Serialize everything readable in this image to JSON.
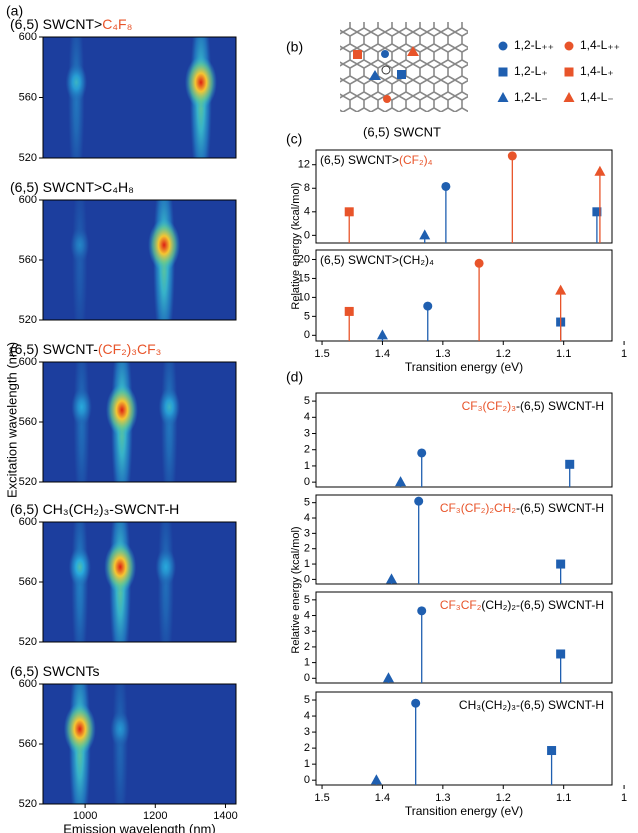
{
  "labels": {
    "a": "(a)",
    "b": "(b)",
    "c": "(c)",
    "d": "(d)",
    "structure": "(6,5) SWCNT",
    "excitation": "Excitation wavelength (nm)",
    "relative_c": "Relative energy (kcal/mol)",
    "relative_d": "Relative energy (kcal/mol)"
  },
  "chart_data": [
    {
      "type": "heatmap",
      "title": [
        {
          "text": "(6,5) SWCNT>",
          "color": "#000000"
        },
        {
          "text": "C₄F₈",
          "color": "#e8542a"
        }
      ],
      "xlim": [
        880,
        1430
      ],
      "ylim": [
        520,
        600
      ],
      "yticks": [
        520,
        560,
        600
      ],
      "peaks": [
        {
          "x": 975,
          "y": 570,
          "intensity": 0.35
        },
        {
          "x": 1330,
          "y": 570,
          "intensity": 1.0
        }
      ]
    },
    {
      "type": "heatmap",
      "title": [
        {
          "text": "(6,5) SWCNT>C₄H₈",
          "color": "#000000"
        }
      ],
      "xlim": [
        880,
        1430
      ],
      "ylim": [
        520,
        600
      ],
      "yticks": [
        520,
        560,
        600
      ],
      "peaks": [
        {
          "x": 985,
          "y": 570,
          "intensity": 0.2
        },
        {
          "x": 1225,
          "y": 570,
          "intensity": 1.0
        }
      ]
    },
    {
      "type": "heatmap",
      "title": [
        {
          "text": "(6,5) SWCNT-",
          "color": "#000000"
        },
        {
          "text": "(CF₂)₃CF₃",
          "color": "#e8542a"
        }
      ],
      "xlim": [
        880,
        1430
      ],
      "ylim": [
        520,
        600
      ],
      "yticks": [
        520,
        560,
        600
      ],
      "peaks": [
        {
          "x": 990,
          "y": 570,
          "intensity": 0.3
        },
        {
          "x": 1105,
          "y": 568,
          "intensity": 1.0
        },
        {
          "x": 1240,
          "y": 570,
          "intensity": 0.35
        }
      ]
    },
    {
      "type": "heatmap",
      "title": [
        {
          "text": "(6,5) CH₃(CH₂)₃-SWCNT-H",
          "color": "#000000"
        }
      ],
      "xlim": [
        880,
        1430
      ],
      "ylim": [
        520,
        600
      ],
      "yticks": [
        520,
        560,
        600
      ],
      "peaks": [
        {
          "x": 985,
          "y": 570,
          "intensity": 0.4
        },
        {
          "x": 1100,
          "y": 570,
          "intensity": 1.0
        },
        {
          "x": 1230,
          "y": 570,
          "intensity": 0.3
        }
      ]
    },
    {
      "type": "heatmap",
      "title": [
        {
          "text": "(6,5) SWCNTs",
          "color": "#000000"
        }
      ],
      "xlim": [
        880,
        1430
      ],
      "ylim": [
        520,
        600
      ],
      "yticks": [
        520,
        560,
        600
      ],
      "xticks": [
        1000,
        1200,
        1400
      ],
      "xlabel": "Emission wavelength (nm)",
      "peaks": [
        {
          "x": 985,
          "y": 570,
          "intensity": 1.0
        },
        {
          "x": 1100,
          "y": 570,
          "intensity": 0.25
        }
      ]
    },
    {
      "type": "stem",
      "title": [
        {
          "text": "(6,5) SWCNT>",
          "color": "#000000"
        },
        {
          "text": "(CF₂)₄",
          "color": "#e8542a"
        }
      ],
      "xlim": [
        1.51,
        1.02
      ],
      "ylim": [
        -1.3,
        14.5
      ],
      "yticks": [
        0,
        4,
        8,
        12
      ],
      "series": [
        {
          "name": "1,2-L₊₊",
          "marker": "circle",
          "color": "#1f5fb0",
          "x": [
            1.295
          ],
          "values": [
            8.3
          ]
        },
        {
          "name": "1,4-L₊₊",
          "marker": "circle",
          "color": "#e8542a",
          "x": [
            1.185
          ],
          "values": [
            13.5
          ]
        },
        {
          "name": "1,2-L₊",
          "marker": "square",
          "color": "#1f5fb0",
          "x": [
            1.045
          ],
          "values": [
            4
          ]
        },
        {
          "name": "1,4-L₊",
          "marker": "square",
          "color": "#e8542a",
          "x": [
            1.455
          ],
          "values": [
            4
          ]
        },
        {
          "name": "1,2-L₋",
          "marker": "triangle",
          "color": "#1f5fb0",
          "x": [
            1.33
          ],
          "values": [
            0
          ]
        },
        {
          "name": "1,4-L₋",
          "marker": "triangle",
          "color": "#e8542a",
          "x": [
            1.04
          ],
          "values": [
            10.8
          ]
        }
      ]
    },
    {
      "type": "stem",
      "title": [
        {
          "text": "(6,5) SWCNT>(CH₂)₄",
          "color": "#000000"
        }
      ],
      "xlim": [
        1.51,
        1.02
      ],
      "ylim": [
        -1.5,
        22.5
      ],
      "yticks": [
        0,
        5,
        10,
        15,
        20
      ],
      "xticks": [
        1.5,
        1.4,
        1.3,
        1.2,
        1.1,
        1.0
      ],
      "xlabel": "Transition energy (eV)",
      "series": [
        {
          "marker": "circle",
          "color": "#1f5fb0",
          "x": [
            1.325
          ],
          "values": [
            7.7
          ]
        },
        {
          "marker": "circle",
          "color": "#e8542a",
          "x": [
            1.24
          ],
          "values": [
            19
          ]
        },
        {
          "marker": "square",
          "color": "#1f5fb0",
          "x": [
            1.105
          ],
          "values": [
            3.5
          ]
        },
        {
          "marker": "square",
          "color": "#e8542a",
          "x": [
            1.455
          ],
          "values": [
            6.3
          ]
        },
        {
          "marker": "triangle",
          "color": "#1f5fb0",
          "x": [
            1.4
          ],
          "values": [
            0
          ]
        },
        {
          "marker": "triangle",
          "color": "#e8542a",
          "x": [
            1.105
          ],
          "values": [
            11.8
          ]
        }
      ]
    },
    {
      "type": "stem",
      "title": [
        {
          "text": "CF₃(CF₂)₃",
          "color": "#e8542a"
        },
        {
          "text": "-(6,5) SWCNT-H",
          "color": "#000000"
        }
      ],
      "xlim": [
        1.51,
        1.02
      ],
      "ylim": [
        -0.3,
        5.5
      ],
      "yticks": [
        0,
        1,
        2,
        3,
        4,
        5
      ],
      "series": [
        {
          "marker": "circle",
          "color": "#1f5fb0",
          "x": [
            1.335
          ],
          "values": [
            1.8
          ]
        },
        {
          "marker": "square",
          "color": "#1f5fb0",
          "x": [
            1.09
          ],
          "values": [
            1.1
          ]
        },
        {
          "marker": "triangle",
          "color": "#1f5fb0",
          "x": [
            1.37
          ],
          "values": [
            0
          ]
        }
      ]
    },
    {
      "type": "stem",
      "title": [
        {
          "text": "CF₃(CF₂)₂CH₂",
          "color": "#e8542a"
        },
        {
          "text": "-(6,5) SWCNT-H",
          "color": "#000000"
        }
      ],
      "xlim": [
        1.51,
        1.02
      ],
      "ylim": [
        -0.3,
        5.5
      ],
      "yticks": [
        0,
        1,
        2,
        3,
        4,
        5
      ],
      "series": [
        {
          "marker": "circle",
          "color": "#1f5fb0",
          "x": [
            1.34
          ],
          "values": [
            5.1
          ]
        },
        {
          "marker": "square",
          "color": "#1f5fb0",
          "x": [
            1.105
          ],
          "values": [
            1.0
          ]
        },
        {
          "marker": "triangle",
          "color": "#1f5fb0",
          "x": [
            1.385
          ],
          "values": [
            0
          ]
        }
      ]
    },
    {
      "type": "stem",
      "title": [
        {
          "text": "CF₃CF₂",
          "color": "#e8542a"
        },
        {
          "text": "(CH₂)₂-(6,5) SWCNT-H",
          "color": "#000000"
        }
      ],
      "xlim": [
        1.51,
        1.02
      ],
      "ylim": [
        -0.3,
        5.5
      ],
      "yticks": [
        0,
        1,
        2,
        3,
        4,
        5
      ],
      "series": [
        {
          "marker": "circle",
          "color": "#1f5fb0",
          "x": [
            1.335
          ],
          "values": [
            4.3
          ]
        },
        {
          "marker": "square",
          "color": "#1f5fb0",
          "x": [
            1.105
          ],
          "values": [
            1.55
          ]
        },
        {
          "marker": "triangle",
          "color": "#1f5fb0",
          "x": [
            1.39
          ],
          "values": [
            0
          ]
        }
      ]
    },
    {
      "type": "stem",
      "title": [
        {
          "text": "CH₃(CH₂)₃-(6,5) SWCNT-H",
          "color": "#000000"
        }
      ],
      "xlim": [
        1.51,
        1.02
      ],
      "ylim": [
        -0.3,
        5.5
      ],
      "yticks": [
        0,
        1,
        2,
        3,
        4,
        5
      ],
      "xticks": [
        1.5,
        1.4,
        1.3,
        1.2,
        1.1,
        1.0
      ],
      "xlabel": "Transition energy (eV)",
      "series": [
        {
          "marker": "circle",
          "color": "#1f5fb0",
          "x": [
            1.345
          ],
          "values": [
            4.8
          ]
        },
        {
          "marker": "square",
          "color": "#1f5fb0",
          "x": [
            1.12
          ],
          "values": [
            1.85
          ]
        },
        {
          "marker": "triangle",
          "color": "#1f5fb0",
          "x": [
            1.41
          ],
          "values": [
            0
          ]
        }
      ]
    }
  ]
}
